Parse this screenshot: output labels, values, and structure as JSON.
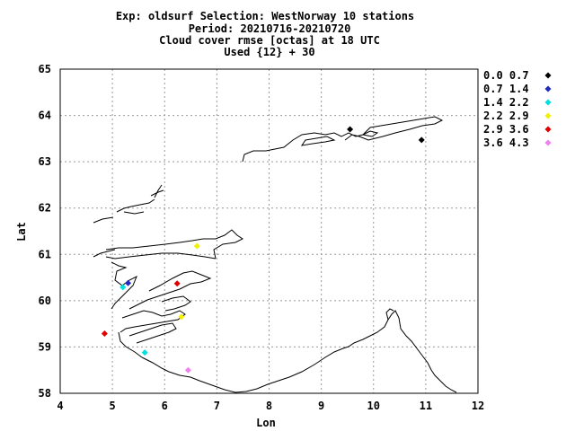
{
  "title": {
    "line1": "Exp: oldsurf   Selection: WestNorway     10 stations",
    "line2": "Period: 20210716-20210720",
    "line3": "Cloud cover rmse [octas] at  18 UTC",
    "line4": "Used {12} + 30"
  },
  "chart_data": {
    "type": "scatter",
    "xlabel": "Lon",
    "ylabel": "Lat",
    "xlim": [
      4,
      12
    ],
    "ylim": [
      58,
      65
    ],
    "xticks": [
      "4",
      "5",
      "6",
      "7",
      "8",
      "9",
      "10",
      "11",
      "12"
    ],
    "yticks": [
      "58",
      "59",
      "60",
      "61",
      "62",
      "63",
      "64",
      "65"
    ],
    "grid": true,
    "legend_position": "right",
    "legend": [
      {
        "label": "0.0 0.7",
        "color": "#000000"
      },
      {
        "label": "0.7 1.4",
        "color": "#1f2bbf"
      },
      {
        "label": "1.4 2.2",
        "color": "#00e0e0"
      },
      {
        "label": "2.2 2.9",
        "color": "#f0f000"
      },
      {
        "label": "2.9 3.6",
        "color": "#e00000"
      },
      {
        "label": "3.6 4.3",
        "color": "#f080f0"
      }
    ],
    "points": [
      {
        "lon": 9.55,
        "lat": 63.7,
        "bin": 0
      },
      {
        "lon": 10.92,
        "lat": 63.47,
        "bin": 0
      },
      {
        "lon": 5.3,
        "lat": 60.38,
        "bin": 1
      },
      {
        "lon": 5.2,
        "lat": 60.29,
        "bin": 2
      },
      {
        "lon": 5.62,
        "lat": 58.88,
        "bin": 2
      },
      {
        "lon": 6.62,
        "lat": 61.18,
        "bin": 3
      },
      {
        "lon": 6.32,
        "lat": 59.65,
        "bin": 3
      },
      {
        "lon": 6.24,
        "lat": 60.37,
        "bin": 4
      },
      {
        "lon": 4.85,
        "lat": 59.29,
        "bin": 4
      },
      {
        "lon": 6.45,
        "lat": 58.5,
        "bin": 5
      }
    ]
  }
}
